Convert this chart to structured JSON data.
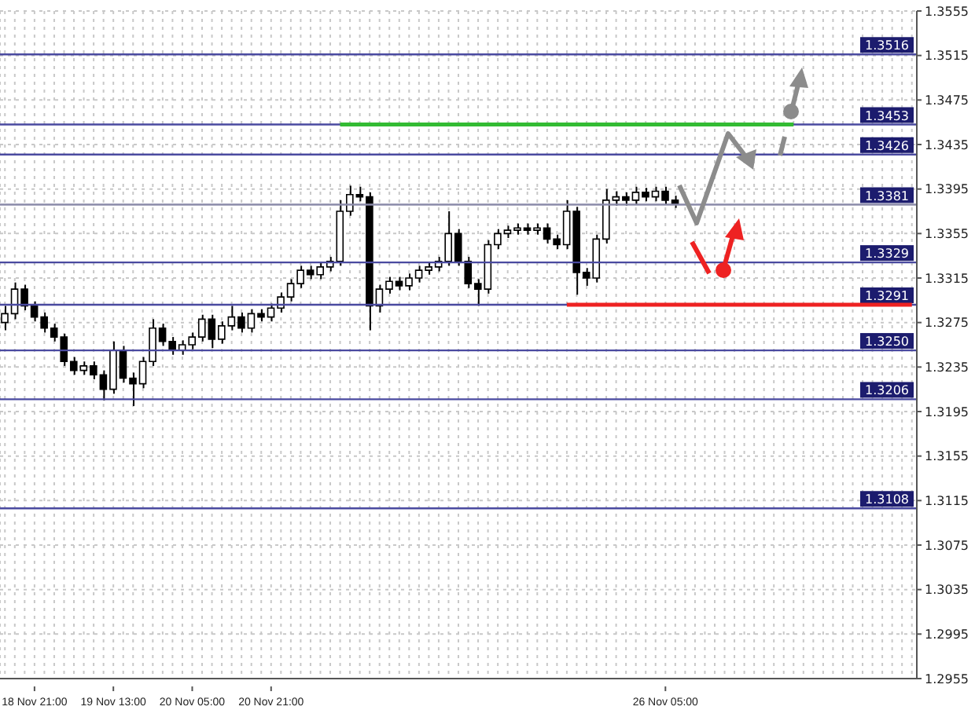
{
  "chart_data": {
    "type": "candlestick",
    "categories": [
      null,
      null,
      null,
      "18 Nov 21:00",
      null,
      null,
      null,
      null,
      null,
      null,
      null,
      "19 Nov 13:00",
      null,
      null,
      null,
      null,
      null,
      null,
      null,
      "20 Nov 05:00",
      null,
      null,
      null,
      null,
      null,
      null,
      null,
      "20 Nov 21:00",
      null,
      null,
      null,
      null,
      null,
      null,
      null,
      null,
      null,
      null,
      null,
      null,
      null,
      null,
      null,
      null,
      null,
      null,
      null,
      null,
      null,
      null,
      null,
      null,
      null,
      null,
      null,
      null,
      null,
      null,
      null,
      null,
      null,
      null,
      null,
      null,
      null,
      null,
      null,
      "26 Nov 05:00",
      null,
      null,
      null,
      null,
      null,
      null,
      null,
      null,
      null,
      null,
      null,
      null,
      null,
      null,
      null,
      null,
      null,
      null,
      null,
      null,
      null,
      null,
      null,
      null,
      null
    ],
    "ohlc": [
      [
        1.3275,
        1.329,
        1.3268,
        1.3283
      ],
      [
        1.3283,
        1.3311,
        1.3278,
        1.3305
      ],
      [
        1.3305,
        1.3309,
        1.3286,
        1.329
      ],
      [
        1.329,
        1.3294,
        1.3276,
        1.328
      ],
      [
        1.328,
        1.3284,
        1.3266,
        1.327
      ],
      [
        1.327,
        1.3274,
        1.3258,
        1.3262
      ],
      [
        1.3262,
        1.3265,
        1.3236,
        1.324
      ],
      [
        1.324,
        1.3244,
        1.3228,
        1.3232
      ],
      [
        1.3232,
        1.324,
        1.3228,
        1.3236
      ],
      [
        1.3236,
        1.324,
        1.3224,
        1.3228
      ],
      [
        1.3228,
        1.3232,
        1.3205,
        1.3215
      ],
      [
        1.3215,
        1.3258,
        1.3211,
        1.325
      ],
      [
        1.325,
        1.3254,
        1.3221,
        1.3225
      ],
      [
        1.3225,
        1.323,
        1.32,
        1.322
      ],
      [
        1.322,
        1.3244,
        1.3216,
        1.324
      ],
      [
        1.324,
        1.3278,
        1.3236,
        1.327
      ],
      [
        1.327,
        1.3274,
        1.3254,
        1.3258
      ],
      [
        1.3258,
        1.3262,
        1.3246,
        1.325
      ],
      [
        1.325,
        1.3259,
        1.3246,
        1.3255
      ],
      [
        1.3255,
        1.3266,
        1.3251,
        1.3262
      ],
      [
        1.3262,
        1.3282,
        1.3258,
        1.3278
      ],
      [
        1.3278,
        1.3282,
        1.3252,
        1.326
      ],
      [
        1.326,
        1.3276,
        1.3256,
        1.3272
      ],
      [
        1.3272,
        1.329,
        1.3268,
        1.328
      ],
      [
        1.328,
        1.3284,
        1.3266,
        1.327
      ],
      [
        1.327,
        1.3287,
        1.3266,
        1.3283
      ],
      [
        1.3283,
        1.3287,
        1.3276,
        1.328
      ],
      [
        1.328,
        1.3292,
        1.3276,
        1.3288
      ],
      [
        1.3288,
        1.3302,
        1.3284,
        1.3298
      ],
      [
        1.3298,
        1.3314,
        1.3294,
        1.331
      ],
      [
        1.331,
        1.3326,
        1.3306,
        1.3322
      ],
      [
        1.3322,
        1.3326,
        1.3314,
        1.3318
      ],
      [
        1.3318,
        1.3329,
        1.3314,
        1.3325
      ],
      [
        1.3325,
        1.3334,
        1.3321,
        1.333
      ],
      [
        1.333,
        1.3385,
        1.3326,
        1.3375
      ],
      [
        1.3375,
        1.3398,
        1.3371,
        1.339
      ],
      [
        1.339,
        1.3397,
        1.3384,
        1.3388
      ],
      [
        1.3388,
        1.3392,
        1.3268,
        1.329
      ],
      [
        1.329,
        1.3309,
        1.3284,
        1.3305
      ],
      [
        1.3305,
        1.3316,
        1.3301,
        1.3312
      ],
      [
        1.3312,
        1.3316,
        1.3304,
        1.3308
      ],
      [
        1.3308,
        1.3319,
        1.3304,
        1.3315
      ],
      [
        1.3315,
        1.3326,
        1.3311,
        1.3322
      ],
      [
        1.3322,
        1.3329,
        1.3318,
        1.3325
      ],
      [
        1.3325,
        1.3334,
        1.3321,
        1.333
      ],
      [
        1.333,
        1.3375,
        1.3326,
        1.3355
      ],
      [
        1.3355,
        1.3359,
        1.3326,
        1.333
      ],
      [
        1.333,
        1.3334,
        1.3306,
        1.331
      ],
      [
        1.331,
        1.3314,
        1.329,
        1.3305
      ],
      [
        1.3305,
        1.3349,
        1.3301,
        1.3345
      ],
      [
        1.3345,
        1.3359,
        1.3341,
        1.3355
      ],
      [
        1.3355,
        1.3362,
        1.3351,
        1.3358
      ],
      [
        1.3358,
        1.3364,
        1.3354,
        1.336
      ],
      [
        1.336,
        1.3364,
        1.3354,
        1.3358
      ],
      [
        1.3358,
        1.3364,
        1.3354,
        1.336
      ],
      [
        1.336,
        1.3364,
        1.3346,
        1.335
      ],
      [
        1.335,
        1.3354,
        1.3341,
        1.3345
      ],
      [
        1.3345,
        1.3385,
        1.3341,
        1.3375
      ],
      [
        1.3375,
        1.3379,
        1.33,
        1.332
      ],
      [
        1.332,
        1.3324,
        1.3308,
        1.3315
      ],
      [
        1.3315,
        1.3354,
        1.3311,
        1.335
      ],
      [
        1.335,
        1.3395,
        1.3346,
        1.3385
      ],
      [
        1.3385,
        1.3393,
        1.338,
        1.3388
      ],
      [
        1.3388,
        1.3392,
        1.338,
        1.3385
      ],
      [
        1.3385,
        1.3397,
        1.3381,
        1.3392
      ],
      [
        1.3392,
        1.3396,
        1.3384,
        1.3388
      ],
      [
        1.3388,
        1.3397,
        1.3384,
        1.3393
      ],
      [
        1.3393,
        1.3397,
        1.3381,
        1.3385
      ],
      [
        1.3385,
        1.3389,
        1.3378,
        1.3382
      ],
      null,
      null,
      null,
      null,
      null,
      null,
      null,
      null,
      null,
      null,
      null,
      null,
      null,
      null,
      null,
      null,
      null,
      null,
      null,
      null,
      null,
      null,
      null,
      null
    ],
    "ylim": [
      1.2955,
      1.3555
    ],
    "yticks": [
      1.2955,
      1.2995,
      1.3035,
      1.3075,
      1.3115,
      1.3155,
      1.3195,
      1.3235,
      1.3275,
      1.3315,
      1.3355,
      1.3395,
      1.3435,
      1.3475,
      1.3515,
      1.3555
    ],
    "grid": true,
    "series": [
      {
        "type": "line",
        "values": [
          null,
          null,
          null,
          null,
          null,
          null,
          null,
          null,
          null,
          null,
          null,
          null,
          null,
          null,
          null,
          null,
          null,
          null,
          null,
          null,
          null,
          null,
          null,
          null,
          null,
          null,
          null,
          null,
          null,
          null,
          null,
          null,
          null,
          null,
          1.3453,
          1.3453,
          1.3453,
          1.3453,
          1.3453,
          1.3453,
          1.3453,
          1.3453,
          1.3453,
          1.3453,
          1.3453,
          1.3453,
          1.3453,
          1.3453,
          1.3453,
          1.3453,
          1.3453,
          1.3453,
          1.3453,
          1.3453,
          1.3453,
          1.3453,
          1.3453,
          1.3453,
          1.3453,
          1.3453,
          1.3453,
          1.3453,
          1.3453,
          1.3453,
          1.3453,
          1.3453,
          1.3453,
          1.3453,
          1.3453,
          1.3453,
          1.3453,
          1.3453,
          1.3453,
          1.3453,
          1.3453,
          1.3453,
          1.3453,
          1.3453,
          1.3453,
          1.3453,
          1.3453,
          null,
          null,
          null,
          null,
          null,
          null,
          null,
          null,
          null,
          null,
          null,
          null
        ],
        "color": "#33bb33"
      },
      {
        "type": "line",
        "values": [
          null,
          null,
          null,
          null,
          null,
          null,
          null,
          null,
          null,
          null,
          null,
          null,
          null,
          null,
          null,
          null,
          null,
          null,
          null,
          null,
          null,
          null,
          null,
          null,
          null,
          null,
          null,
          null,
          null,
          null,
          null,
          null,
          null,
          null,
          null,
          null,
          null,
          null,
          null,
          null,
          null,
          null,
          null,
          null,
          null,
          null,
          null,
          null,
          null,
          null,
          null,
          null,
          null,
          null,
          null,
          null,
          null,
          1.3291,
          1.3291,
          1.3291,
          1.3291,
          1.3291,
          1.3291,
          1.3291,
          1.3291,
          1.3291,
          1.3291,
          1.3291,
          1.3291,
          1.3291,
          1.3291,
          1.3291,
          1.3291,
          1.3291,
          1.3291,
          1.3291,
          1.3291,
          1.3291,
          1.3291,
          1.3291,
          1.3291,
          1.3291,
          1.3291,
          1.3291,
          1.3291,
          1.3291,
          1.3291,
          1.3291,
          1.3291,
          1.3291,
          1.3291,
          1.3291,
          1.3291
        ],
        "color": "#ee2222"
      }
    ],
    "ref_lines": [
      {
        "axis": "y",
        "value": 1.3516,
        "label": "1.3516",
        "color": "#4a4aa0"
      },
      {
        "axis": "y",
        "value": 1.3453,
        "label": "1.3453",
        "color": "#4a4aa0"
      },
      {
        "axis": "y",
        "value": 1.3426,
        "label": "1.3426",
        "color": "#4a4aa0"
      },
      {
        "axis": "y",
        "value": 1.3381,
        "label": "1.3381",
        "color": "#8a8aa8"
      },
      {
        "axis": "y",
        "value": 1.3329,
        "label": "1.3329",
        "color": "#4a4aa0"
      },
      {
        "axis": "y",
        "value": 1.3291,
        "label": "1.3291",
        "color": "#4a4aa0"
      },
      {
        "axis": "y",
        "value": 1.325,
        "label": "1.3250",
        "color": "#4a4aa0"
      },
      {
        "axis": "y",
        "value": 1.3206,
        "label": "1.3206",
        "color": "#4a4aa0"
      },
      {
        "axis": "y",
        "value": 1.3108,
        "label": "1.3108",
        "color": "#4a4aa0"
      }
    ]
  }
}
